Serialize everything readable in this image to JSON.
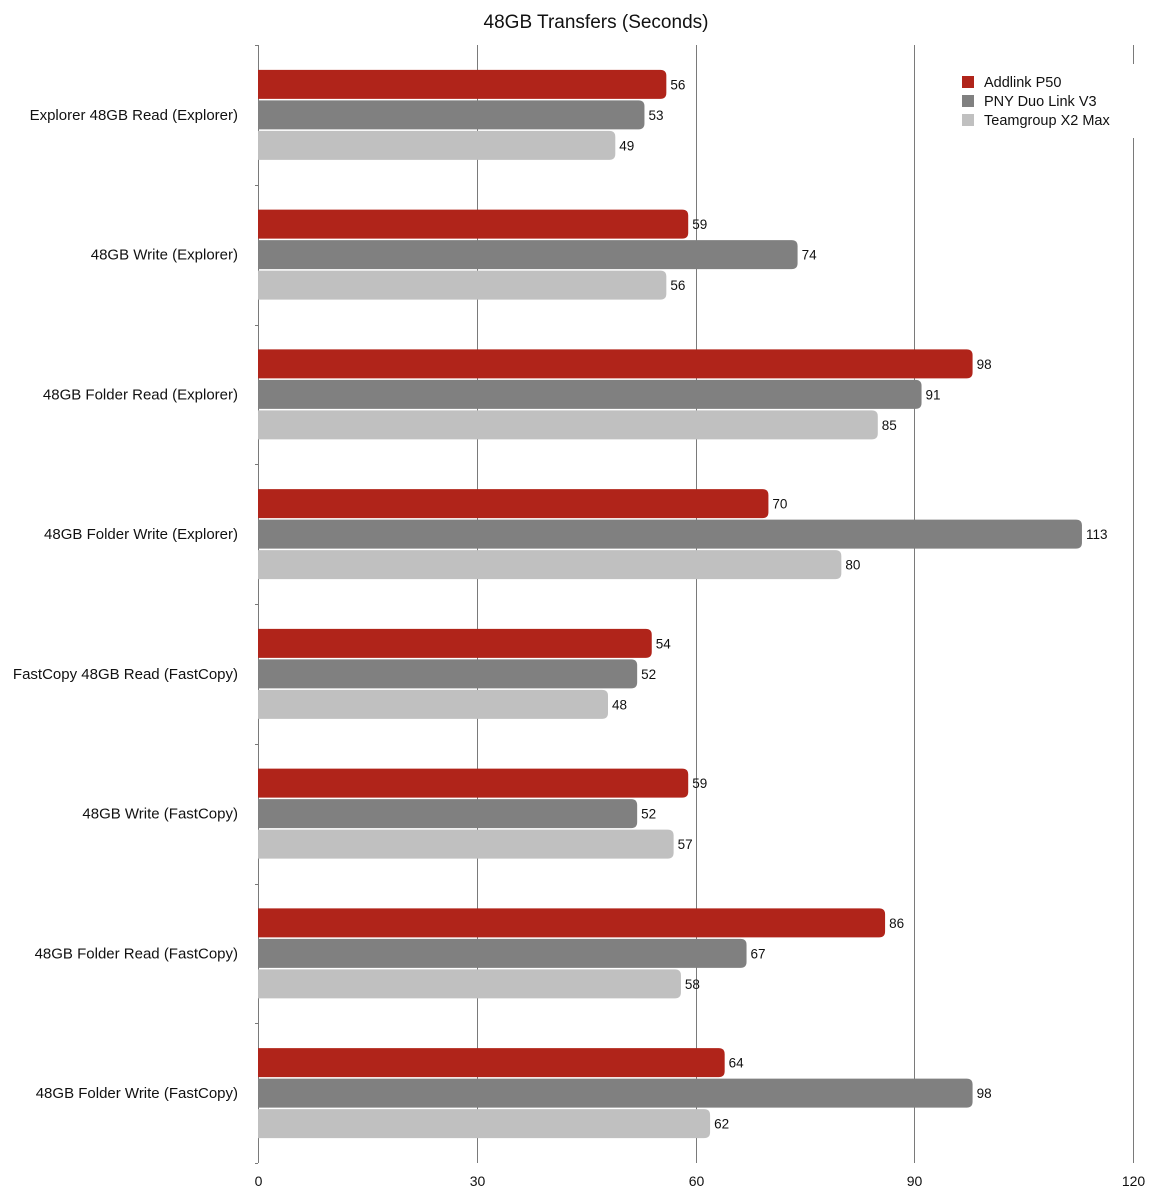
{
  "chart_data": {
    "type": "bar",
    "orientation": "horizontal",
    "title": "48GB Transfers (Seconds)",
    "xlabel": "",
    "ylabel": "",
    "xlim": [
      0,
      120
    ],
    "xticks": [
      0,
      30,
      60,
      90,
      120
    ],
    "grid": true,
    "legend_position": "top-right",
    "categories": [
      "Explorer 48GB Read (Explorer)",
      "48GB Write (Explorer)",
      "48GB Folder Read (Explorer)",
      "48GB Folder Write (Explorer)",
      "FastCopy 48GB Read (FastCopy)",
      "48GB Write (FastCopy)",
      "48GB Folder Read (FastCopy)",
      "48GB Folder Write (FastCopy)"
    ],
    "series": [
      {
        "name": "Addlink P50",
        "color": "#b0241a",
        "values": [
          56,
          59,
          98,
          70,
          54,
          59,
          86,
          64
        ]
      },
      {
        "name": "PNY Duo Link V3",
        "color": "#808080",
        "values": [
          53,
          74,
          91,
          113,
          52,
          52,
          67,
          98
        ]
      },
      {
        "name": "Teamgroup X2 Max",
        "color": "#c0c0c0",
        "values": [
          49,
          56,
          85,
          80,
          48,
          57,
          58,
          62
        ]
      }
    ]
  }
}
